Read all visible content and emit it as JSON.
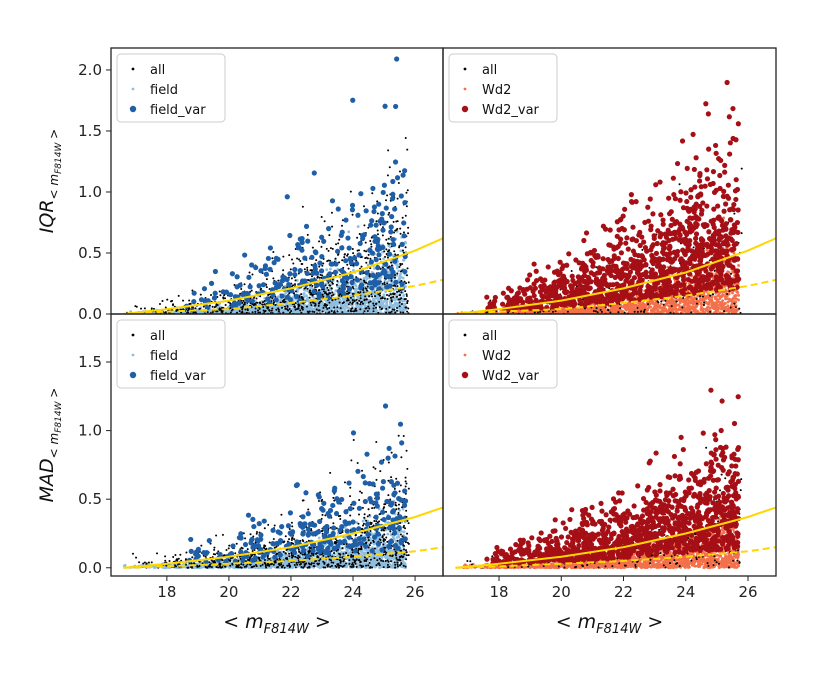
{
  "chart_data": [
    {
      "type": "scatter",
      "panel": "top-left",
      "ylabel": "IQR_{<m_F814W>}",
      "xlabel": "",
      "xlim": [
        16.2,
        26.9
      ],
      "ylim": [
        0.0,
        2.18
      ],
      "yticks": [
        "0.0",
        "0.5",
        "1.0",
        "1.5",
        "2.0"
      ],
      "xticks": [],
      "legend_position": "top-left",
      "legend": [
        "all",
        "field",
        "field_var"
      ],
      "series": [
        {
          "name": "all",
          "color": "#000000",
          "marker": "dot-small"
        },
        {
          "name": "field",
          "color": "#8fbfe0",
          "marker": "dot-small"
        },
        {
          "name": "field_var",
          "color": "#1f5fa8",
          "marker": "dot-large"
        }
      ],
      "fit_curves": [
        {
          "name": "solid",
          "color": "#ffd700",
          "style": "solid",
          "x": [
            16.6,
            18,
            20,
            22,
            24,
            26,
            26.9
          ],
          "y": [
            0.0,
            0.04,
            0.11,
            0.21,
            0.34,
            0.52,
            0.62
          ]
        },
        {
          "name": "dashed",
          "color": "#ffd700",
          "style": "dashed",
          "x": [
            16.6,
            18,
            20,
            22,
            24,
            26,
            26.9
          ],
          "y": [
            0.0,
            0.02,
            0.04,
            0.09,
            0.15,
            0.23,
            0.28
          ]
        }
      ]
    },
    {
      "type": "scatter",
      "panel": "top-right",
      "ylabel": "",
      "xlabel": "",
      "xlim": [
        16.2,
        26.9
      ],
      "ylim": [
        0.0,
        2.18
      ],
      "yticks": [],
      "xticks": [],
      "legend_position": "top-left",
      "legend": [
        "all",
        "Wd2",
        "Wd2_var"
      ],
      "series": [
        {
          "name": "all",
          "color": "#000000",
          "marker": "dot-small"
        },
        {
          "name": "Wd2",
          "color": "#f4704a",
          "marker": "dot-small"
        },
        {
          "name": "Wd2_var",
          "color": "#a50f15",
          "marker": "dot-large"
        }
      ],
      "fit_curves": [
        {
          "name": "solid",
          "color": "#ffd700",
          "style": "solid",
          "x": [
            16.6,
            18,
            20,
            22,
            24,
            26,
            26.9
          ],
          "y": [
            0.0,
            0.04,
            0.11,
            0.21,
            0.34,
            0.52,
            0.62
          ]
        },
        {
          "name": "dashed",
          "color": "#ffd700",
          "style": "dashed",
          "x": [
            16.6,
            18,
            20,
            22,
            24,
            26,
            26.9
          ],
          "y": [
            0.0,
            0.02,
            0.04,
            0.09,
            0.15,
            0.23,
            0.28
          ]
        }
      ]
    },
    {
      "type": "scatter",
      "panel": "bottom-left",
      "ylabel": "MAD_{<m_F814W>}",
      "xlabel": "<m_F814W>",
      "xlim": [
        16.2,
        26.9
      ],
      "ylim": [
        -0.06,
        1.85
      ],
      "yticks": [
        "0.0",
        "0.5",
        "1.0",
        "1.5"
      ],
      "xticks": [
        "18",
        "20",
        "22",
        "24",
        "26"
      ],
      "legend_position": "top-left",
      "legend": [
        "all",
        "field",
        "field_var"
      ],
      "series": [
        {
          "name": "all",
          "color": "#000000",
          "marker": "dot-small"
        },
        {
          "name": "field",
          "color": "#8fbfe0",
          "marker": "dot-small"
        },
        {
          "name": "field_var",
          "color": "#1f5fa8",
          "marker": "dot-large"
        }
      ],
      "fit_curves": [
        {
          "name": "solid",
          "color": "#ffd700",
          "style": "solid",
          "x": [
            16.6,
            18,
            20,
            22,
            24,
            26,
            26.9
          ],
          "y": [
            0.0,
            0.03,
            0.08,
            0.15,
            0.25,
            0.37,
            0.44
          ]
        },
        {
          "name": "dashed",
          "color": "#ffd700",
          "style": "dashed",
          "x": [
            16.6,
            18,
            20,
            22,
            24,
            26,
            26.9
          ],
          "y": [
            0.0,
            0.01,
            0.03,
            0.05,
            0.08,
            0.12,
            0.15
          ]
        }
      ]
    },
    {
      "type": "scatter",
      "panel": "bottom-right",
      "ylabel": "",
      "xlabel": "<m_F814W>",
      "xlim": [
        16.2,
        26.9
      ],
      "ylim": [
        -0.06,
        1.85
      ],
      "yticks": [],
      "xticks": [
        "18",
        "20",
        "22",
        "24",
        "26"
      ],
      "legend_position": "top-left",
      "legend": [
        "all",
        "Wd2",
        "Wd2_var"
      ],
      "series": [
        {
          "name": "all",
          "color": "#000000",
          "marker": "dot-small"
        },
        {
          "name": "Wd2",
          "color": "#f4704a",
          "marker": "dot-small"
        },
        {
          "name": "Wd2_var",
          "color": "#a50f15",
          "marker": "dot-large"
        }
      ],
      "fit_curves": [
        {
          "name": "solid",
          "color": "#ffd700",
          "style": "solid",
          "x": [
            16.6,
            18,
            20,
            22,
            24,
            26,
            26.9
          ],
          "y": [
            0.0,
            0.03,
            0.08,
            0.15,
            0.25,
            0.37,
            0.44
          ]
        },
        {
          "name": "dashed",
          "color": "#ffd700",
          "style": "dashed",
          "x": [
            16.6,
            18,
            20,
            22,
            24,
            26,
            26.9
          ],
          "y": [
            0.0,
            0.01,
            0.03,
            0.05,
            0.08,
            0.12,
            0.15
          ]
        }
      ]
    }
  ]
}
